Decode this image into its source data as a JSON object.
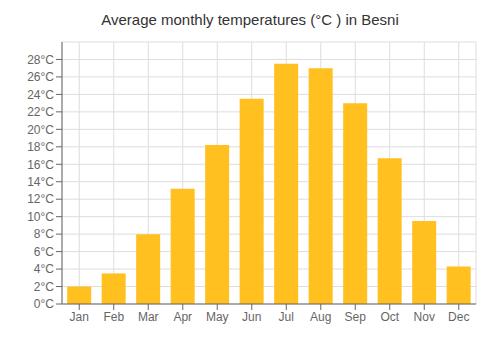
{
  "chart_data": {
    "type": "bar",
    "title": "Average monthly temperatures (°C ) in Besni",
    "categories": [
      "Jan",
      "Feb",
      "Mar",
      "Apr",
      "May",
      "Jun",
      "Jul",
      "Aug",
      "Sep",
      "Oct",
      "Nov",
      "Dec"
    ],
    "values": [
      2,
      3.5,
      8,
      13.2,
      18.2,
      23.5,
      27.5,
      27,
      23,
      16.7,
      9.5,
      4.3
    ],
    "color": "#FFC020",
    "ylim": [
      0,
      30
    ],
    "yticks": [
      {
        "value": 0,
        "label": "0°C"
      },
      {
        "value": 2,
        "label": "2°C"
      },
      {
        "value": 4,
        "label": "4°C"
      },
      {
        "value": 6,
        "label": "6°C"
      },
      {
        "value": 8,
        "label": "8°C"
      },
      {
        "value": 10,
        "label": "10°C"
      },
      {
        "value": 12,
        "label": "12°C"
      },
      {
        "value": 14,
        "label": "14°C"
      },
      {
        "value": 16,
        "label": "16°C"
      },
      {
        "value": 18,
        "label": "18°C"
      },
      {
        "value": 20,
        "label": "20°C"
      },
      {
        "value": 22,
        "label": "22°C"
      },
      {
        "value": 24,
        "label": "24°C"
      },
      {
        "value": 26,
        "label": "26°C"
      },
      {
        "value": 28,
        "label": "28°C"
      }
    ],
    "grid": true
  }
}
